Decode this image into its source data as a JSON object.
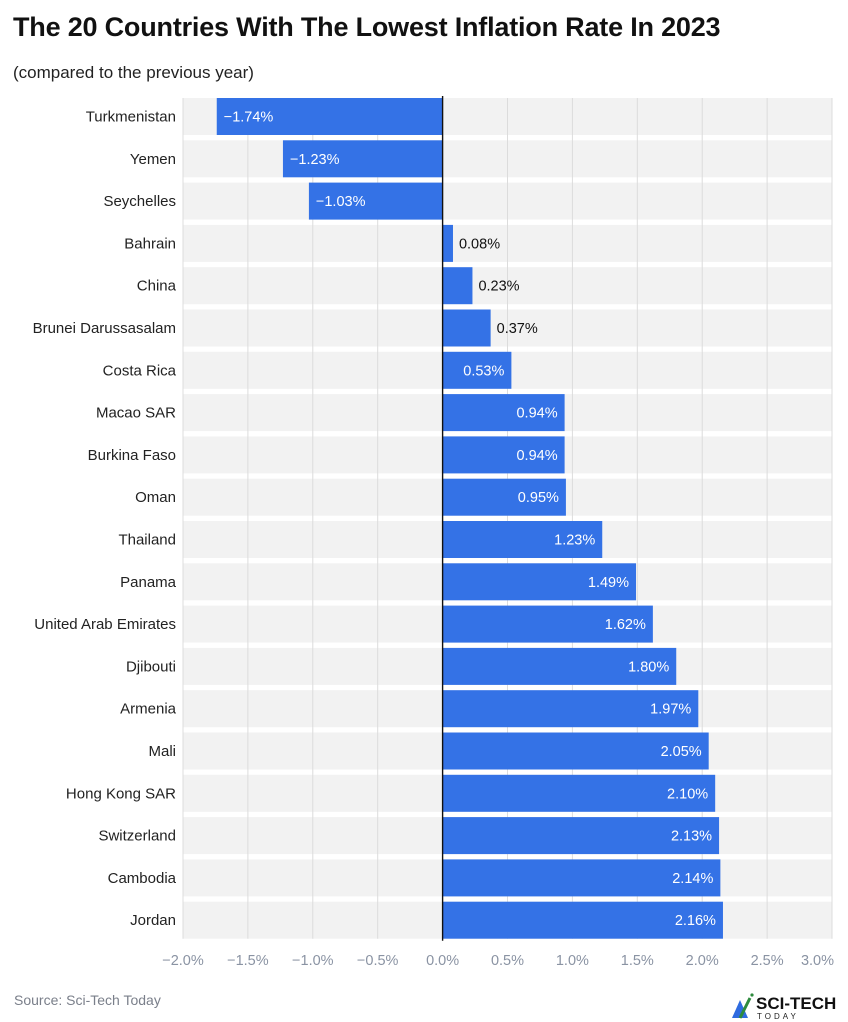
{
  "chart_data": {
    "type": "bar",
    "orientation": "horizontal",
    "title": "The 20 Countries With The Lowest Inflation Rate In 2023",
    "subtitle": "(compared to the previous year)",
    "categories": [
      "Turkmenistan",
      "Yemen",
      "Seychelles",
      "Bahrain",
      "China",
      "Brunei Darussasalam",
      "Costa Rica",
      "Macao SAR",
      "Burkina Faso",
      "Oman",
      "Thailand",
      "Panama",
      "United Arab Emirates",
      "Djibouti",
      "Armenia",
      "Mali",
      "Hong Kong SAR",
      "Switzerland",
      "Cambodia",
      "Jordan"
    ],
    "values": [
      -1.74,
      -1.23,
      -1.03,
      0.08,
      0.23,
      0.37,
      0.53,
      0.94,
      0.94,
      0.95,
      1.23,
      1.49,
      1.62,
      1.8,
      1.97,
      2.05,
      2.1,
      2.13,
      2.14,
      2.16
    ],
    "data_labels": [
      "−1.74%",
      "−1.23%",
      "−1.03%",
      "0.08%",
      "0.23%",
      "0.37%",
      "0.53%",
      "0.94%",
      "0.94%",
      "0.95%",
      "1.23%",
      "1.49%",
      "1.62%",
      "1.80%",
      "1.97%",
      "2.05%",
      "2.10%",
      "2.13%",
      "2.14%",
      "2.16%"
    ],
    "xlim": [
      -2.0,
      3.0
    ],
    "xticks": [
      -2.0,
      -1.5,
      -1.0,
      -0.5,
      0.0,
      0.5,
      1.0,
      1.5,
      2.0,
      2.5,
      3.0
    ],
    "xtick_labels": [
      "−2.0%",
      "−1.5%",
      "−1.0%",
      "−0.5%",
      "0.0%",
      "0.5%",
      "1.0%",
      "1.5%",
      "2.0%",
      "2.5%",
      "3.0%"
    ],
    "xlabel": "",
    "ylabel": "",
    "grid": true,
    "legend": "none",
    "bar_color": "#3472e6"
  },
  "source": "Source: Sci-Tech Today",
  "logo": {
    "text": "SCI-TECH",
    "subtext": "TODAY"
  }
}
